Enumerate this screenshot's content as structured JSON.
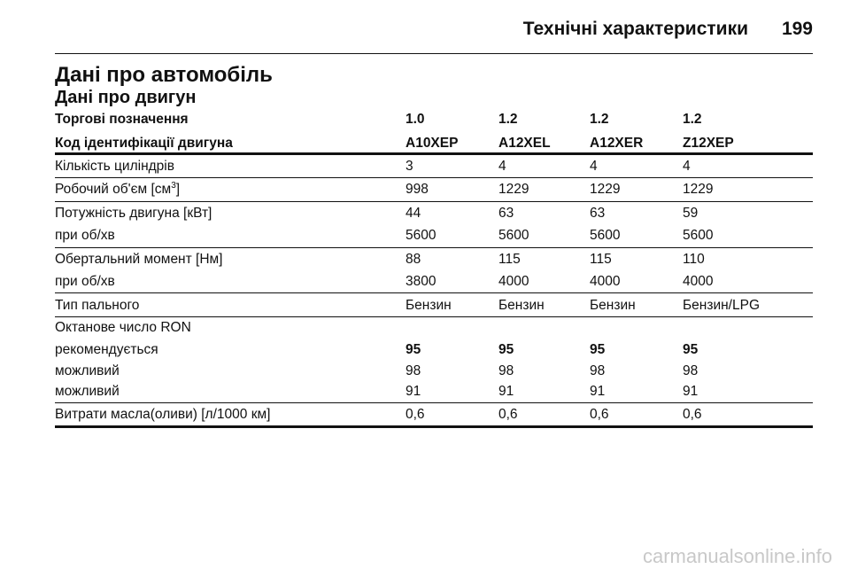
{
  "header": {
    "section": "Технічні характеристики",
    "page": "199"
  },
  "title": "Дані про автомобіль",
  "subtitle": "Дані про двигун",
  "table": {
    "columns": [
      [
        "Торгові позначення",
        "1.0",
        "1.2",
        "1.2",
        "1.2"
      ],
      [
        "Код ідентифікації двигуна",
        "A10XEP",
        "A12XEL",
        "A12XER",
        "Z12XEP"
      ]
    ],
    "rows": [
      [
        "Кількість циліндрів",
        "3",
        "4",
        "4",
        "4"
      ],
      [
        [
          "Робочий об'єм [см",
          "3",
          "]"
        ],
        "998",
        "1229",
        "1229",
        "1229"
      ],
      [
        "Потужність двигуна [кВт]",
        "44",
        "63",
        "63",
        "59"
      ],
      [
        "при об/хв",
        "5600",
        "5600",
        "5600",
        "5600"
      ],
      [
        "Обертальний момент [Нм]",
        "88",
        "115",
        "115",
        "110"
      ],
      [
        "при об/хв",
        "3800",
        "4000",
        "4000",
        "4000"
      ],
      [
        "Тип пального",
        "Бензин",
        "Бензин",
        "Бензин",
        "Бензин/LPG"
      ],
      [
        "Октанове число RON"
      ],
      [
        "рекомендується",
        "95",
        "95",
        "95",
        "95"
      ],
      [
        "можливий",
        "98",
        "98",
        "98",
        "98"
      ],
      [
        "можливий",
        "91",
        "91",
        "91",
        "91"
      ],
      [
        "Витрати масла(оливи) [л/1000 км]",
        "0,6",
        "0,6",
        "0,6",
        "0,6"
      ]
    ]
  },
  "watermark": "carmanualsonline.info"
}
